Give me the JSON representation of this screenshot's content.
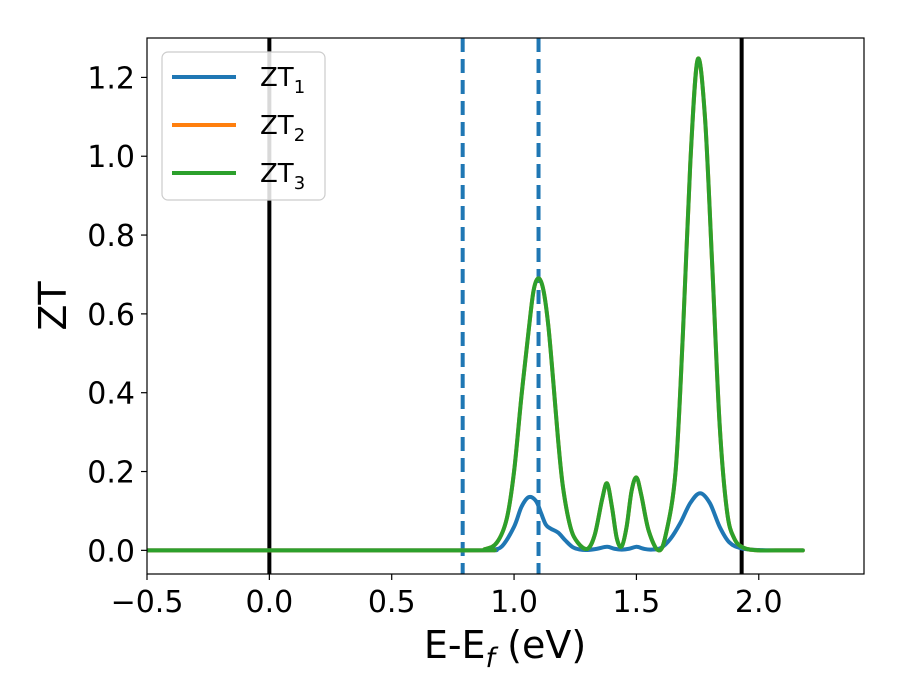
{
  "chart_data": {
    "type": "line",
    "xlabel": "E-E_f (eV)",
    "xlabel_main": "E-E",
    "xlabel_sub": "f",
    "xlabel_tail": " (eV)",
    "ylabel": "ZT",
    "xlim": [
      -0.5,
      2.43
    ],
    "ylim": [
      -0.06,
      1.3
    ],
    "x_ticks": [
      -0.5,
      0.0,
      0.5,
      1.0,
      1.5,
      2.0
    ],
    "x_tick_labels": [
      "−0.5",
      "0.0",
      "0.5",
      "1.0",
      "1.5",
      "2.0"
    ],
    "y_ticks": [
      0.0,
      0.2,
      0.4,
      0.6,
      0.8,
      1.0,
      1.2
    ],
    "y_tick_labels": [
      "0.0",
      "0.2",
      "0.4",
      "0.6",
      "0.8",
      "1.0",
      "1.2"
    ],
    "grid": false,
    "legend_position": "top-left",
    "vertical_lines": [
      {
        "x": 0.0,
        "style": "solid",
        "color": "#000000"
      },
      {
        "x": 1.93,
        "style": "solid",
        "color": "#000000"
      },
      {
        "x": 0.79,
        "style": "dashed",
        "color": "#1f77b4"
      },
      {
        "x": 1.1,
        "style": "dashed",
        "color": "#1f77b4"
      }
    ],
    "series": [
      {
        "name": "ZT1",
        "label_main": "ZT",
        "label_sub": "1",
        "color": "#1f77b4",
        "x": [
          -0.5,
          0.8,
          0.9,
          0.95,
          1.0,
          1.03,
          1.06,
          1.09,
          1.11,
          1.13,
          1.15,
          1.18,
          1.21,
          1.24,
          1.27,
          1.3,
          1.34,
          1.38,
          1.41,
          1.44,
          1.47,
          1.5,
          1.53,
          1.56,
          1.6,
          1.64,
          1.68,
          1.72,
          1.76,
          1.8,
          1.84,
          1.88,
          1.93,
          2.0,
          2.1,
          2.18
        ],
        "y": [
          0.0,
          0.0,
          0.002,
          0.01,
          0.06,
          0.11,
          0.135,
          0.125,
          0.095,
          0.065,
          0.055,
          0.045,
          0.025,
          0.008,
          0.002,
          0.001,
          0.004,
          0.009,
          0.004,
          0.002,
          0.004,
          0.009,
          0.004,
          0.002,
          0.006,
          0.03,
          0.07,
          0.12,
          0.145,
          0.12,
          0.06,
          0.02,
          0.005,
          0.001,
          0.0,
          0.0
        ]
      },
      {
        "name": "ZT2",
        "label_main": "ZT",
        "label_sub": "2",
        "color": "#ff7f0e",
        "x": [
          -0.5,
          0.8,
          0.88,
          0.93,
          0.97,
          1.0,
          1.03,
          1.06,
          1.08,
          1.1,
          1.12,
          1.14,
          1.16,
          1.18,
          1.2,
          1.23,
          1.26,
          1.3,
          1.33,
          1.36,
          1.38,
          1.4,
          1.42,
          1.44,
          1.46,
          1.48,
          1.5,
          1.52,
          1.55,
          1.59,
          1.62,
          1.66,
          1.69,
          1.72,
          1.75,
          1.78,
          1.81,
          1.84,
          1.87,
          1.9,
          1.94,
          2.0,
          2.1,
          2.18
        ],
        "y": [
          0.0,
          0.0,
          0.003,
          0.02,
          0.08,
          0.2,
          0.39,
          0.56,
          0.66,
          0.69,
          0.66,
          0.57,
          0.43,
          0.28,
          0.16,
          0.06,
          0.02,
          0.004,
          0.04,
          0.13,
          0.17,
          0.11,
          0.03,
          0.01,
          0.06,
          0.15,
          0.185,
          0.14,
          0.05,
          0.0,
          0.04,
          0.2,
          0.55,
          0.98,
          1.245,
          1.1,
          0.72,
          0.32,
          0.1,
          0.03,
          0.006,
          0.0,
          0.0,
          0.0
        ]
      },
      {
        "name": "ZT3",
        "label_main": "ZT",
        "label_sub": "3",
        "color": "#2ca02c",
        "x": [
          -0.5,
          0.8,
          0.88,
          0.93,
          0.97,
          1.0,
          1.03,
          1.06,
          1.08,
          1.1,
          1.12,
          1.14,
          1.16,
          1.18,
          1.2,
          1.23,
          1.26,
          1.3,
          1.33,
          1.36,
          1.38,
          1.4,
          1.42,
          1.44,
          1.46,
          1.48,
          1.5,
          1.52,
          1.55,
          1.59,
          1.62,
          1.66,
          1.69,
          1.72,
          1.75,
          1.78,
          1.81,
          1.84,
          1.87,
          1.9,
          1.94,
          2.0,
          2.1,
          2.18
        ],
        "y": [
          0.0,
          0.0,
          0.003,
          0.02,
          0.08,
          0.2,
          0.39,
          0.56,
          0.66,
          0.69,
          0.66,
          0.57,
          0.43,
          0.28,
          0.16,
          0.06,
          0.02,
          0.004,
          0.04,
          0.13,
          0.17,
          0.11,
          0.03,
          0.01,
          0.06,
          0.15,
          0.185,
          0.14,
          0.05,
          0.0,
          0.04,
          0.2,
          0.55,
          0.98,
          1.245,
          1.1,
          0.72,
          0.32,
          0.1,
          0.03,
          0.006,
          0.0,
          0.0,
          0.0
        ]
      }
    ]
  }
}
